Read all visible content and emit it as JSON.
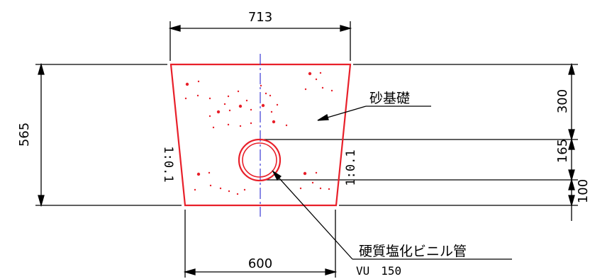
{
  "dimensions": {
    "top_width": "713",
    "bottom_width": "600",
    "total_height": "565",
    "upper_height": "300",
    "pipe_height": "165",
    "base_height": "100"
  },
  "slopes": {
    "left": "1:0.1",
    "right": "1:0.1"
  },
  "labels": {
    "sand_foundation": "砂基礎",
    "pipe_name": "硬質塩化ビニル管",
    "pipe_spec": "VU　150"
  },
  "colors": {
    "outline": "#e8202a",
    "centerline": "#3b3bd6",
    "dimension": "#000000"
  }
}
